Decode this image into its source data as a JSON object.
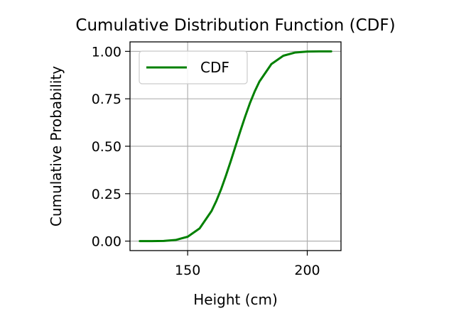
{
  "chart_data": {
    "type": "line",
    "title": "Cumulative Distribution Function (CDF)",
    "xlabel": "Height (cm)",
    "ylabel": "Cumulative Probability",
    "xlim": [
      125.9,
      214.1
    ],
    "ylim": [
      -0.05,
      1.05
    ],
    "xticks": [
      150,
      200
    ],
    "xtick_labels": [
      "150",
      "200"
    ],
    "yticks": [
      0,
      0.25,
      0.5,
      0.75,
      1.0
    ],
    "ytick_labels": [
      "0.00",
      "0.25",
      "0.50",
      "0.75",
      "1.00"
    ],
    "grid": true,
    "legend_position": "upper-left",
    "series": [
      {
        "name": "CDF",
        "color": "#008000",
        "x": [
          130,
          135,
          140,
          145,
          150,
          155,
          160,
          162,
          164,
          166,
          168,
          170,
          172,
          174,
          176,
          178,
          180,
          185,
          190,
          195,
          200,
          205,
          210
        ],
        "y": [
          0.0,
          0.0,
          0.001,
          0.006,
          0.023,
          0.067,
          0.159,
          0.212,
          0.274,
          0.345,
          0.421,
          0.5,
          0.579,
          0.655,
          0.726,
          0.788,
          0.841,
          0.933,
          0.977,
          0.994,
          0.999,
          1.0,
          1.0
        ]
      }
    ]
  }
}
